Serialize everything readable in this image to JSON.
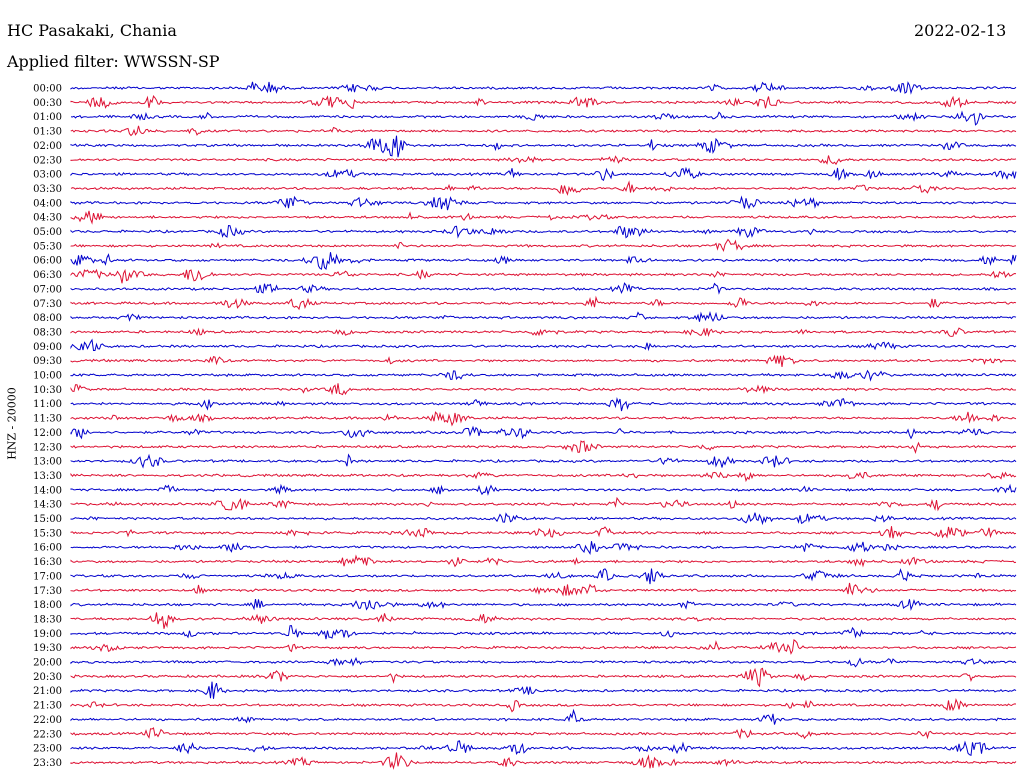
{
  "header": {
    "station": "HC Pasakaki, Chania",
    "date": "2022-02-13",
    "filter": "Applied filter: WWSSN-SP"
  },
  "axis": {
    "channel_label": "HNZ - 20000"
  },
  "colors": {
    "even_trace": "#0000cc",
    "odd_trace": "#dd1133",
    "text": "#000000",
    "background": "#ffffff"
  },
  "rows": [
    {
      "label": "00:00",
      "color": "blue"
    },
    {
      "label": "00:30",
      "color": "red"
    },
    {
      "label": "01:00",
      "color": "blue"
    },
    {
      "label": "01:30",
      "color": "red"
    },
    {
      "label": "02:00",
      "color": "blue"
    },
    {
      "label": "02:30",
      "color": "red"
    },
    {
      "label": "03:00",
      "color": "blue"
    },
    {
      "label": "03:30",
      "color": "red"
    },
    {
      "label": "04:00",
      "color": "blue"
    },
    {
      "label": "04:30",
      "color": "red"
    },
    {
      "label": "05:00",
      "color": "blue"
    },
    {
      "label": "05:30",
      "color": "red"
    },
    {
      "label": "06:00",
      "color": "blue"
    },
    {
      "label": "06:30",
      "color": "red"
    },
    {
      "label": "07:00",
      "color": "blue"
    },
    {
      "label": "07:30",
      "color": "red"
    },
    {
      "label": "08:00",
      "color": "blue"
    },
    {
      "label": "08:30",
      "color": "red"
    },
    {
      "label": "09:00",
      "color": "blue"
    },
    {
      "label": "09:30",
      "color": "red"
    },
    {
      "label": "10:00",
      "color": "blue"
    },
    {
      "label": "10:30",
      "color": "red"
    },
    {
      "label": "11:00",
      "color": "blue"
    },
    {
      "label": "11:30",
      "color": "red"
    },
    {
      "label": "12:00",
      "color": "blue"
    },
    {
      "label": "12:30",
      "color": "red"
    },
    {
      "label": "13:00",
      "color": "blue"
    },
    {
      "label": "13:30",
      "color": "red"
    },
    {
      "label": "14:00",
      "color": "blue"
    },
    {
      "label": "14:30",
      "color": "red"
    },
    {
      "label": "15:00",
      "color": "blue"
    },
    {
      "label": "15:30",
      "color": "red"
    },
    {
      "label": "16:00",
      "color": "blue"
    },
    {
      "label": "16:30",
      "color": "red"
    },
    {
      "label": "17:00",
      "color": "blue"
    },
    {
      "label": "17:30",
      "color": "red"
    },
    {
      "label": "18:00",
      "color": "blue"
    },
    {
      "label": "18:30",
      "color": "red"
    },
    {
      "label": "19:00",
      "color": "blue"
    },
    {
      "label": "19:30",
      "color": "red"
    },
    {
      "label": "20:00",
      "color": "blue"
    },
    {
      "label": "20:30",
      "color": "red"
    },
    {
      "label": "21:00",
      "color": "blue"
    },
    {
      "label": "21:30",
      "color": "red"
    },
    {
      "label": "22:00",
      "color": "blue"
    },
    {
      "label": "22:30",
      "color": "red"
    },
    {
      "label": "23:00",
      "color": "blue"
    },
    {
      "label": "23:30",
      "color": "red"
    }
  ]
}
